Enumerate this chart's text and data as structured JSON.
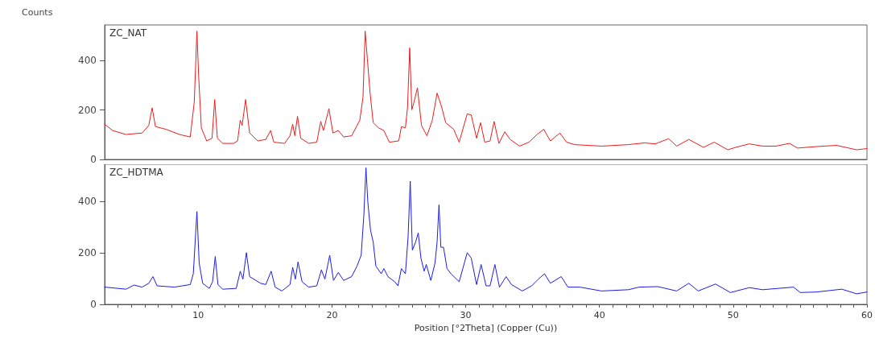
{
  "chart_data": [
    {
      "type": "line",
      "ylabel": "Counts",
      "xlim": [
        3,
        60
      ],
      "ylim": [
        0,
        545
      ],
      "yticks": [
        0,
        200,
        400
      ],
      "xticks": [
        10,
        20,
        30,
        40,
        50,
        60
      ],
      "tick_labels": "y",
      "grid": false,
      "legend": false,
      "marker": "none",
      "line_style": "solid",
      "series": [
        {
          "name": "ZC_NAT",
          "color": "#ee1c1c",
          "x": [
            3.0,
            3.6,
            4.6,
            5.8,
            6.3,
            6.55,
            6.8,
            7.6,
            8.6,
            9.4,
            9.7,
            9.9,
            10.03,
            10.23,
            10.63,
            11.03,
            11.23,
            11.43,
            11.83,
            12.64,
            12.94,
            13.14,
            13.28,
            13.54,
            13.84,
            14.45,
            15.05,
            15.41,
            15.65,
            16.45,
            16.86,
            17.06,
            17.22,
            17.42,
            17.66,
            18.26,
            18.86,
            19.16,
            19.36,
            19.77,
            20.07,
            20.47,
            20.87,
            21.47,
            22.08,
            22.32,
            22.48,
            22.64,
            22.84,
            23.08,
            23.48,
            23.88,
            24.29,
            24.99,
            25.19,
            25.49,
            25.65,
            25.81,
            25.97,
            26.13,
            26.39,
            26.69,
            27.1,
            27.5,
            27.86,
            28.2,
            28.5,
            29.1,
            29.51,
            30.11,
            30.41,
            30.81,
            31.11,
            31.42,
            31.82,
            32.12,
            32.48,
            32.92,
            33.32,
            34.03,
            34.73,
            35.33,
            35.83,
            36.33,
            37.04,
            37.54,
            38.14,
            40.15,
            42.16,
            43.36,
            44.17,
            45.17,
            45.77,
            46.68,
            47.78,
            48.58,
            49.59,
            50.19,
            51.2,
            52.2,
            53.2,
            54.21,
            54.81,
            56.22,
            57.72,
            59.23,
            60
          ],
          "values": [
            143,
            117,
            101,
            107,
            138,
            209,
            133,
            122,
            101,
            91,
            232,
            520,
            337,
            128,
            75,
            86,
            243,
            86,
            65,
            65,
            75,
            159,
            138,
            243,
            107,
            75,
            81,
            117,
            70,
            65,
            96,
            143,
            96,
            175,
            86,
            65,
            70,
            154,
            117,
            206,
            107,
            117,
            91,
            96,
            159,
            253,
            520,
            410,
            274,
            149,
            128,
            117,
            70,
            75,
            133,
            128,
            212,
            452,
            201,
            232,
            290,
            138,
            96,
            159,
            269,
            212,
            149,
            122,
            70,
            185,
            180,
            86,
            149,
            70,
            75,
            154,
            65,
            112,
            81,
            54,
            70,
            101,
            122,
            75,
            107,
            70,
            60,
            54,
            60,
            67,
            63,
            84,
            54,
            81,
            49,
            70,
            39,
            49,
            63,
            54,
            54,
            65,
            46,
            52,
            57,
            39,
            44
          ]
        }
      ]
    },
    {
      "type": "line",
      "xlabel": "Position [°2Theta] (Copper (Cu))",
      "xlim": [
        3,
        60
      ],
      "ylim": [
        0,
        545
      ],
      "yticks": [
        0,
        200,
        400
      ],
      "xticks": [
        {
          "value": 4,
          "label": null
        },
        {
          "value": 5,
          "label": null
        },
        {
          "value": 6,
          "label": null
        },
        {
          "value": 7,
          "label": null
        },
        {
          "value": 8,
          "label": null
        },
        {
          "value": 9,
          "label": null
        },
        10,
        {
          "value": 11,
          "label": null
        },
        {
          "value": 12,
          "label": null
        },
        {
          "value": 13,
          "label": null
        },
        {
          "value": 14,
          "label": null
        },
        {
          "value": 15,
          "label": null
        },
        {
          "value": 16,
          "label": null
        },
        {
          "value": 17,
          "label": null
        },
        {
          "value": 18,
          "label": null
        },
        {
          "value": 19,
          "label": null
        },
        20,
        {
          "value": 21,
          "label": null
        },
        {
          "value": 22,
          "label": null
        },
        {
          "value": 23,
          "label": null
        },
        {
          "value": 24,
          "label": null
        },
        {
          "value": 25,
          "label": null
        },
        {
          "value": 26,
          "label": null
        },
        {
          "value": 27,
          "label": null
        },
        {
          "value": 28,
          "label": null
        },
        {
          "value": 29,
          "label": null
        },
        30,
        {
          "value": 31,
          "label": null
        },
        {
          "value": 32,
          "label": null
        },
        {
          "value": 33,
          "label": null
        },
        {
          "value": 34,
          "label": null
        },
        {
          "value": 35,
          "label": null
        },
        {
          "value": 36,
          "label": null
        },
        {
          "value": 37,
          "label": null
        },
        {
          "value": 38,
          "label": null
        },
        {
          "value": 39,
          "label": null
        },
        40,
        {
          "value": 41,
          "label": null
        },
        {
          "value": 42,
          "label": null
        },
        {
          "value": 43,
          "label": null
        },
        {
          "value": 44,
          "label": null
        },
        {
          "value": 45,
          "label": null
        },
        {
          "value": 46,
          "label": null
        },
        {
          "value": 47,
          "label": null
        },
        {
          "value": 48,
          "label": null
        },
        {
          "value": 49,
          "label": null
        },
        50,
        {
          "value": 51,
          "label": null
        },
        {
          "value": 52,
          "label": null
        },
        {
          "value": 53,
          "label": null
        },
        {
          "value": 54,
          "label": null
        },
        {
          "value": 55,
          "label": null
        },
        {
          "value": 56,
          "label": null
        },
        {
          "value": 57,
          "label": null
        },
        {
          "value": 58,
          "label": null
        },
        {
          "value": 59,
          "label": null
        },
        60
      ],
      "grid": false,
      "legend": false,
      "marker": "none",
      "line_style": "solid",
      "series": [
        {
          "name": "ZC_HDTMA",
          "color": "#1c1ce6",
          "x": [
            3.0,
            4.6,
            5.2,
            5.8,
            6.3,
            6.61,
            6.92,
            8.22,
            9.4,
            9.63,
            9.9,
            10.07,
            10.33,
            10.83,
            11.07,
            11.27,
            11.47,
            11.83,
            12.84,
            13.14,
            13.34,
            13.6,
            13.84,
            14.65,
            15.05,
            15.45,
            15.75,
            16.25,
            16.86,
            17.06,
            17.26,
            17.46,
            17.76,
            18.26,
            18.86,
            19.21,
            19.47,
            19.83,
            20.11,
            20.47,
            20.87,
            21.47,
            21.87,
            22.18,
            22.38,
            22.54,
            22.68,
            22.88,
            23.08,
            23.28,
            23.68,
            23.88,
            24.18,
            24.69,
            24.93,
            25.19,
            25.49,
            25.69,
            25.85,
            26.01,
            26.25,
            26.45,
            26.65,
            26.89,
            27.05,
            27.39,
            27.7,
            27.86,
            28.0,
            28.14,
            28.34,
            28.6,
            28.9,
            29.51,
            30.11,
            30.41,
            30.81,
            31.15,
            31.52,
            31.82,
            32.18,
            32.52,
            33.02,
            33.42,
            34.23,
            34.93,
            35.43,
            35.89,
            36.33,
            37.14,
            37.64,
            38.54,
            40.15,
            42.16,
            42.96,
            44.37,
            45.77,
            46.68,
            47.38,
            48.68,
            49.79,
            51.2,
            52.2,
            54.51,
            55.01,
            56.22,
            58.12,
            59.23,
            60
          ],
          "values": [
            67,
            59,
            75,
            67,
            82,
            108,
            72,
            67,
            77,
            119,
            361,
            160,
            82,
            62,
            88,
            186,
            77,
            59,
            62,
            129,
            98,
            201,
            108,
            82,
            77,
            129,
            67,
            52,
            77,
            144,
            98,
            165,
            88,
            67,
            72,
            134,
            98,
            191,
            93,
            124,
            93,
            108,
            149,
            191,
            345,
            531,
            397,
            289,
            242,
            149,
            119,
            139,
            108,
            88,
            72,
            139,
            119,
            263,
            479,
            211,
            242,
            278,
            180,
            129,
            155,
            93,
            160,
            242,
            387,
            222,
            222,
            139,
            119,
            88,
            201,
            180,
            77,
            155,
            72,
            72,
            155,
            67,
            108,
            77,
            52,
            72,
            98,
            119,
            82,
            108,
            67,
            67,
            52,
            57,
            67,
            69,
            52,
            82,
            52,
            79,
            46,
            65,
            57,
            67,
            46,
            48,
            59,
            41,
            48
          ]
        }
      ]
    }
  ]
}
